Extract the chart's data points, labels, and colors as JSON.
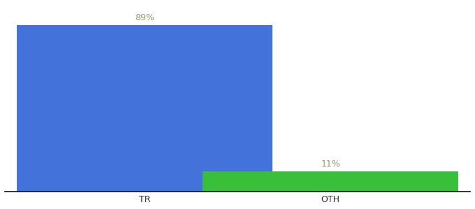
{
  "categories": [
    "TR",
    "OTH"
  ],
  "values": [
    89,
    11
  ],
  "bar_colors": [
    "#4472db",
    "#3abf3a"
  ],
  "labels": [
    "89%",
    "11%"
  ],
  "ylim": [
    0,
    100
  ],
  "background_color": "#ffffff",
  "label_color": "#999977",
  "label_fontsize": 9,
  "xlabel_fontsize": 9,
  "axis_line_color": "#111111",
  "bar_width": 0.55,
  "x_positions": [
    0.3,
    0.7
  ]
}
